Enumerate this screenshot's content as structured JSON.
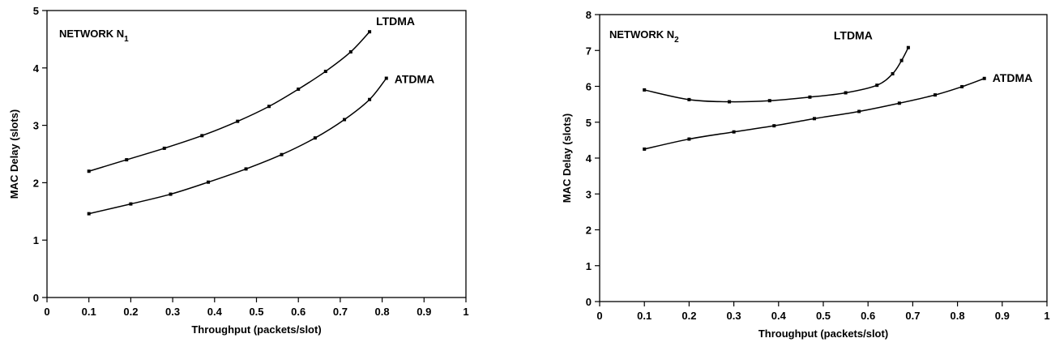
{
  "chart_data": [
    {
      "type": "line",
      "title": "",
      "annotation": {
        "main": "NETWORK N",
        "sub": "1"
      },
      "xlabel": "Throughput (packets/slot)",
      "ylabel": "MAC Delay (slots)",
      "xlim": [
        0,
        1
      ],
      "ylim": [
        0,
        5
      ],
      "xticks": [
        "0",
        "0.1",
        "0.2",
        "0.3",
        "0.4",
        "0.5",
        "0.6",
        "0.7",
        "0.8",
        "0.9",
        "1"
      ],
      "yticks": [
        "0",
        "1",
        "2",
        "3",
        "4",
        "5"
      ],
      "grid": false,
      "series": [
        {
          "name": "LTDMA",
          "x": [
            0.1,
            0.19,
            0.28,
            0.37,
            0.455,
            0.53,
            0.6,
            0.665,
            0.725,
            0.77
          ],
          "y": [
            2.2,
            2.4,
            2.6,
            2.82,
            3.07,
            3.33,
            3.63,
            3.94,
            4.28,
            4.63
          ]
        },
        {
          "name": "ATDMA",
          "x": [
            0.1,
            0.2,
            0.295,
            0.385,
            0.475,
            0.56,
            0.64,
            0.71,
            0.77,
            0.81
          ],
          "y": [
            1.46,
            1.63,
            1.8,
            2.01,
            2.24,
            2.49,
            2.78,
            3.1,
            3.45,
            3.82
          ]
        }
      ]
    },
    {
      "type": "line",
      "title": "",
      "annotation": {
        "main": "NETWORK N",
        "sub": "2"
      },
      "xlabel": "Throughput (packets/slot)",
      "ylabel": "MAC Delay (slots)",
      "xlim": [
        0,
        1
      ],
      "ylim": [
        0,
        8
      ],
      "xticks": [
        "0",
        "0.1",
        "0.2",
        "0.3",
        "0.4",
        "0.5",
        "0.6",
        "0.7",
        "0.8",
        "0.9",
        "1"
      ],
      "yticks": [
        "0",
        "1",
        "2",
        "3",
        "4",
        "5",
        "6",
        "7",
        "8"
      ],
      "grid": false,
      "series": [
        {
          "name": "LTDMA",
          "x": [
            0.1,
            0.2,
            0.29,
            0.38,
            0.47,
            0.55,
            0.62,
            0.655,
            0.675,
            0.69
          ],
          "y": [
            5.9,
            5.63,
            5.57,
            5.6,
            5.7,
            5.82,
            6.03,
            6.35,
            6.72,
            7.08
          ]
        },
        {
          "name": "ATDMA",
          "x": [
            0.1,
            0.2,
            0.3,
            0.39,
            0.48,
            0.58,
            0.67,
            0.75,
            0.81,
            0.86
          ],
          "y": [
            4.25,
            4.53,
            4.73,
            4.9,
            5.1,
            5.3,
            5.53,
            5.76,
            5.99,
            6.22
          ]
        }
      ]
    }
  ]
}
